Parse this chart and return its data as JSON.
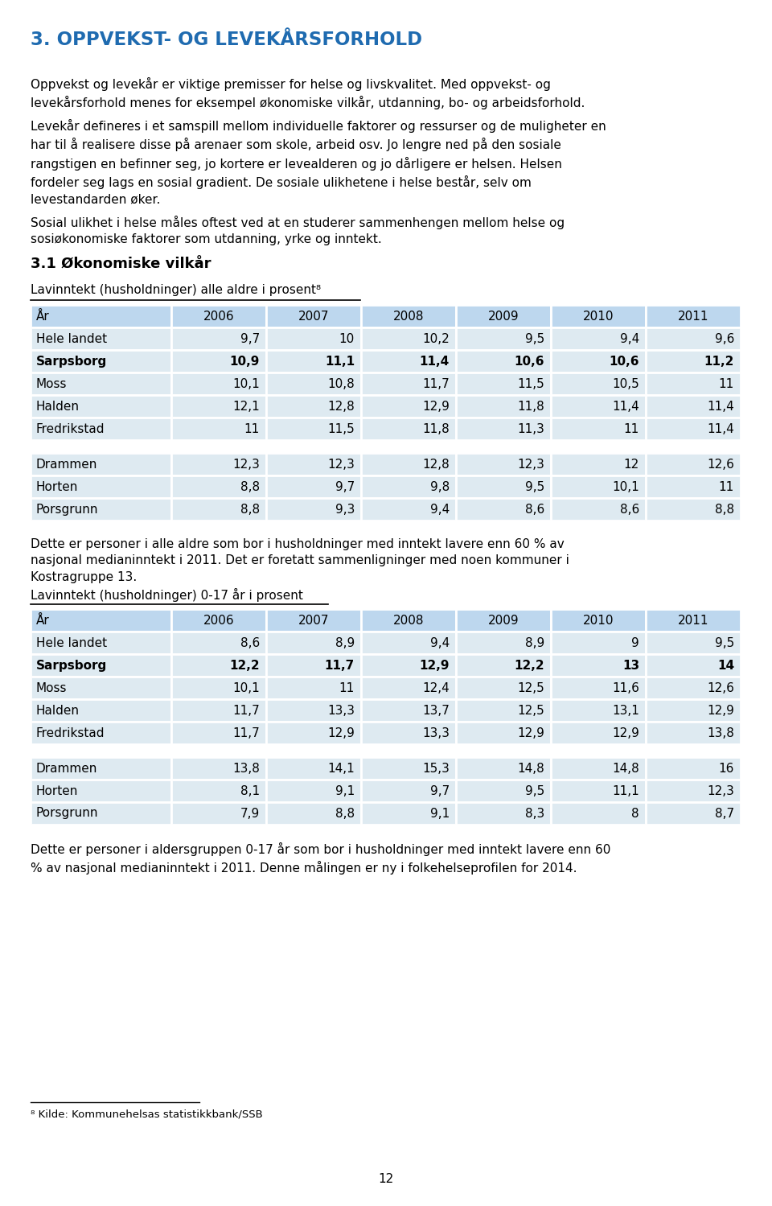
{
  "title": "3. OPPVEKST- OG LEVEKÅRSFORHOLD",
  "title_color": "#1F6BB0",
  "para1": "Oppvekst og levekår er viktige premisser for helse og livskvalitet. Med oppvekst- og\nlevekårsforhold menes for eksempel økonomiske vilkår, utdanning, bo- og arbeidsforhold.",
  "para2": "Levekår defineres i et samspill mellom individuelle faktorer og ressurser og de muligheter en\nhar til å realisere disse på arenaer som skole, arbeid osv. Jo lengre ned på den sosiale\nrangstigen en befinner seg, jo kortere er levealderen og jo dårligere er helsen. Helsen\nfordeler seg lags en sosial gradient. De sosiale ulikhetene i helse består, selv om\nlevestandarden øker.",
  "para3": "Sosial ulikhet i helse måles oftest ved at en studerer sammenhengen mellom helse og\nsosiøkonomiske faktorer som utdanning, yrke og inntekt.",
  "section_title": "3.1 Økonomiske vilkår",
  "table1_title": "Lavinntekt (husholdninger) alle aldre i prosent⁸",
  "table1_headers": [
    "År",
    "2006",
    "2007",
    "2008",
    "2009",
    "2010",
    "2011"
  ],
  "table1_rows": [
    {
      "name": "Hele landet",
      "bold": false,
      "values": [
        "9,7",
        "10",
        "10,2",
        "9,5",
        "9,4",
        "9,6"
      ]
    },
    {
      "name": "Sarpsborg",
      "bold": true,
      "values": [
        "10,9",
        "11,1",
        "11,4",
        "10,6",
        "10,6",
        "11,2"
      ]
    },
    {
      "name": "Moss",
      "bold": false,
      "values": [
        "10,1",
        "10,8",
        "11,7",
        "11,5",
        "10,5",
        "11"
      ]
    },
    {
      "name": "Halden",
      "bold": false,
      "values": [
        "12,1",
        "12,8",
        "12,9",
        "11,8",
        "11,4",
        "11,4"
      ]
    },
    {
      "name": "Fredrikstad",
      "bold": false,
      "values": [
        "11",
        "11,5",
        "11,8",
        "11,3",
        "11",
        "11,4"
      ]
    }
  ],
  "table1_rows2": [
    {
      "name": "Drammen",
      "bold": false,
      "values": [
        "12,3",
        "12,3",
        "12,8",
        "12,3",
        "12",
        "12,6"
      ]
    },
    {
      "name": "Horten",
      "bold": false,
      "values": [
        "8,8",
        "9,7",
        "9,8",
        "9,5",
        "10,1",
        "11"
      ]
    },
    {
      "name": "Porsgrunn",
      "bold": false,
      "values": [
        "8,8",
        "9,3",
        "9,4",
        "8,6",
        "8,6",
        "8,8"
      ]
    }
  ],
  "footnote1": "Dette er personer i alle aldre som bor i husholdninger med inntekt lavere enn 60 % av\nnasjonal medianinntekt i 2011. Det er foretatt sammenligninger med noen kommuner i\nKostragruppe 13.",
  "table2_title": "Lavinntekt (husholdninger) 0-17 år i prosent",
  "table2_headers": [
    "År",
    "2006",
    "2007",
    "2008",
    "2009",
    "2010",
    "2011"
  ],
  "table2_rows": [
    {
      "name": "Hele landet",
      "bold": false,
      "values": [
        "8,6",
        "8,9",
        "9,4",
        "8,9",
        "9",
        "9,5"
      ]
    },
    {
      "name": "Sarpsborg",
      "bold": true,
      "values": [
        "12,2",
        "11,7",
        "12,9",
        "12,2",
        "13",
        "14"
      ]
    },
    {
      "name": "Moss",
      "bold": false,
      "values": [
        "10,1",
        "11",
        "12,4",
        "12,5",
        "11,6",
        "12,6"
      ]
    },
    {
      "name": "Halden",
      "bold": false,
      "values": [
        "11,7",
        "13,3",
        "13,7",
        "12,5",
        "13,1",
        "12,9"
      ]
    },
    {
      "name": "Fredrikstad",
      "bold": false,
      "values": [
        "11,7",
        "12,9",
        "13,3",
        "12,9",
        "12,9",
        "13,8"
      ]
    }
  ],
  "table2_rows2": [
    {
      "name": "Drammen",
      "bold": false,
      "values": [
        "13,8",
        "14,1",
        "15,3",
        "14,8",
        "14,8",
        "16"
      ]
    },
    {
      "name": "Horten",
      "bold": false,
      "values": [
        "8,1",
        "9,1",
        "9,7",
        "9,5",
        "11,1",
        "12,3"
      ]
    },
    {
      "name": "Porsgrunn",
      "bold": false,
      "values": [
        "7,9",
        "8,8",
        "9,1",
        "8,3",
        "8",
        "8,7"
      ]
    }
  ],
  "footnote2": "Dette er personer i aldersgruppen 0-17 år som bor i husholdninger med inntekt lavere enn 60\n% av nasjonal medianinntekt i 2011. Denne målingen er ny i folkehelseprofilen for 2014.",
  "footnote_ref": "⁸ Kilde: Kommunehelsas statistikkbank/SSB",
  "page_number": "12",
  "bg_color": "#FFFFFF",
  "text_color": "#000000",
  "table_header_bg": "#BDD7EE",
  "table_row_bg": "#DEEAF1",
  "table_border_color": "#FFFFFF",
  "body_font_size": 11.0,
  "table_font_size": 11.0
}
